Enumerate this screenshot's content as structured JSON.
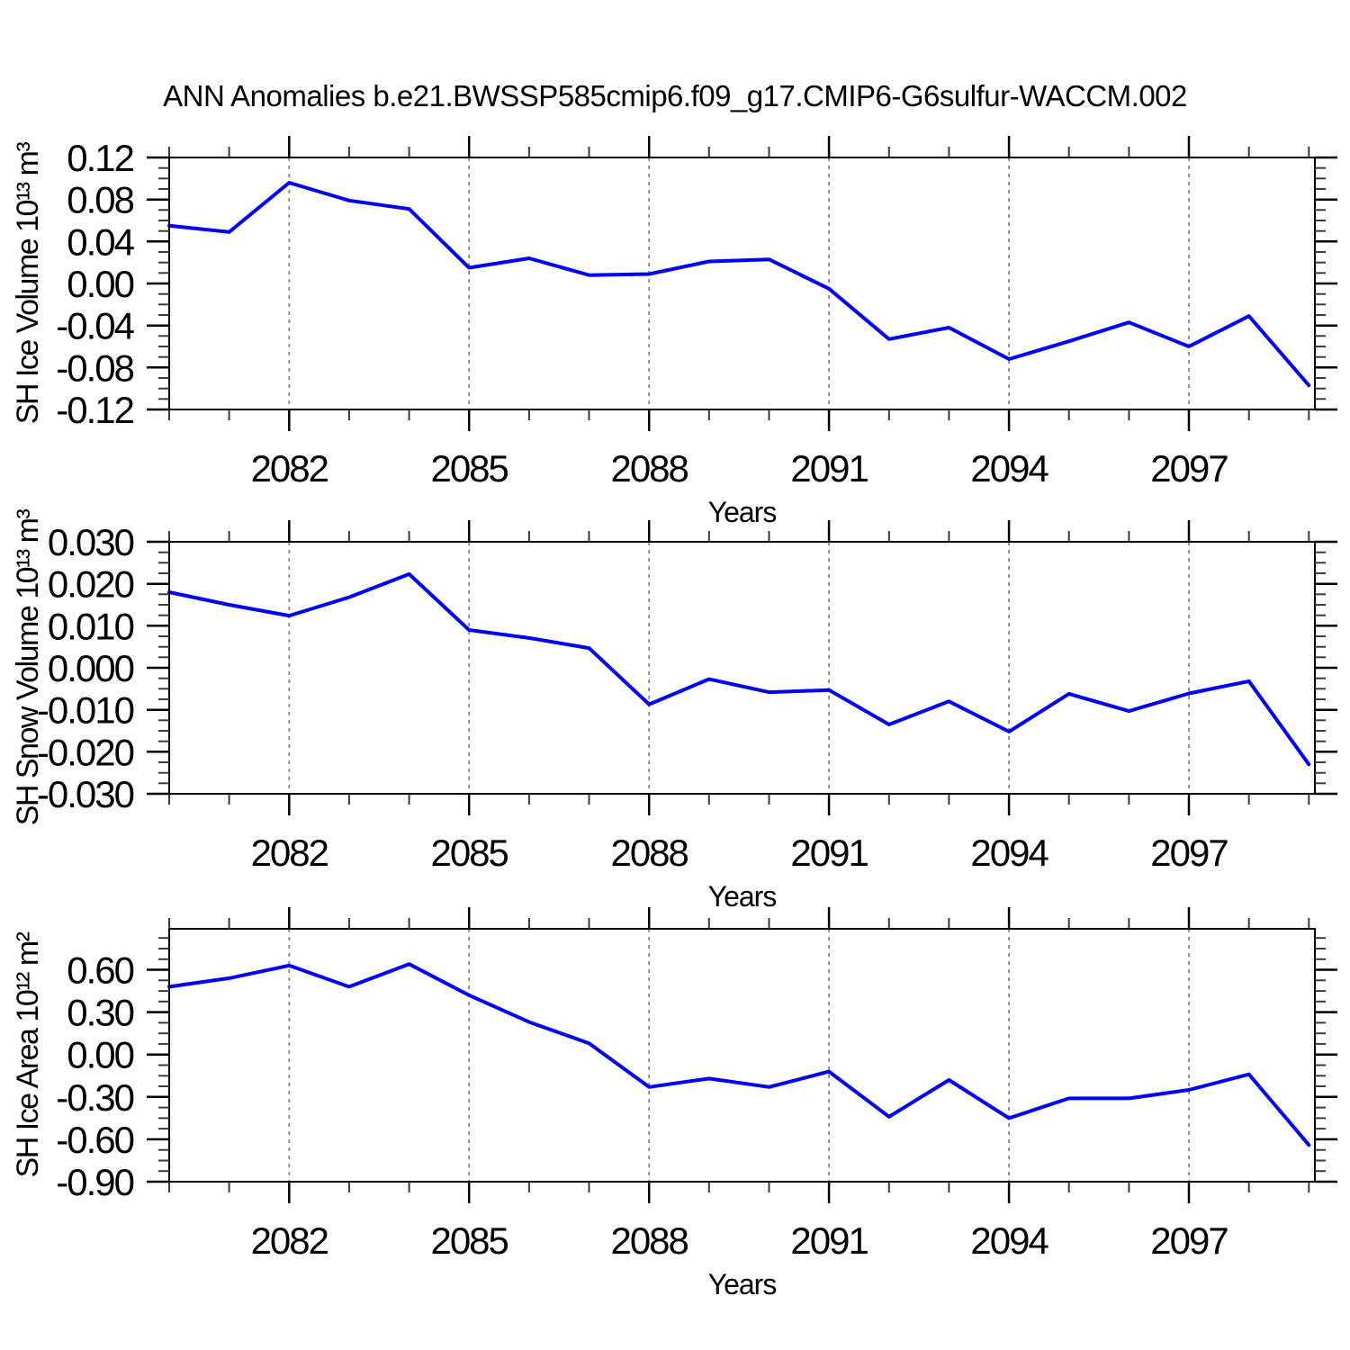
{
  "title": "ANN Anomalies b.e21.BWSSP585cmip6.f09_g17.CMIP6-G6sulfur-WACCM.002",
  "chart_data": [
    {
      "type": "line",
      "ylabel": "SH Ice Volume 10¹³ m³",
      "xlabel": "Years",
      "x": [
        2080,
        2081,
        2082,
        2083,
        2084,
        2085,
        2086,
        2087,
        2088,
        2089,
        2090,
        2091,
        2092,
        2093,
        2094,
        2095,
        2096,
        2097,
        2098,
        2099
      ],
      "values": [
        0.055,
        0.049,
        0.096,
        0.079,
        0.071,
        0.015,
        0.024,
        0.008,
        0.009,
        0.021,
        0.023,
        -0.005,
        -0.053,
        -0.042,
        -0.072,
        -0.055,
        -0.037,
        -0.06,
        -0.031,
        -0.097
      ],
      "xlim": [
        2080,
        2099.1
      ],
      "ylim": [
        -0.12,
        0.12
      ],
      "yticks": [
        0.12,
        0.08,
        0.04,
        0.0,
        -0.04,
        -0.08,
        -0.12
      ],
      "ytick_labels": [
        "0.12",
        "0.08",
        "0.04",
        "0.00",
        "-0.04",
        "-0.08",
        "-0.12"
      ],
      "ytick_minor_step": 0.01,
      "xticks": [
        2082,
        2085,
        2088,
        2091,
        2094,
        2097
      ],
      "xtick_labels": [
        "2082",
        "2085",
        "2088",
        "2091",
        "2094",
        "2097"
      ],
      "xtick_minor_step": 1,
      "grid": "vertical-dashed",
      "line_color": "#0000ff"
    },
    {
      "type": "line",
      "ylabel": "SH Snow Volume 10¹³ m³",
      "xlabel": "Years",
      "x": [
        2080,
        2081,
        2082,
        2083,
        2084,
        2085,
        2086,
        2087,
        2088,
        2089,
        2090,
        2091,
        2092,
        2093,
        2094,
        2095,
        2096,
        2097,
        2098,
        2099
      ],
      "values": [
        0.018,
        0.015,
        0.0124,
        0.0168,
        0.0223,
        0.009,
        0.0071,
        0.0047,
        -0.0087,
        -0.0027,
        -0.0058,
        -0.0053,
        -0.0135,
        -0.008,
        -0.0152,
        -0.0062,
        -0.0103,
        -0.0061,
        -0.0032,
        -0.023
      ],
      "xlim": [
        2080,
        2099.1
      ],
      "ylim": [
        -0.03,
        0.03
      ],
      "yticks": [
        0.03,
        0.02,
        0.01,
        0.0,
        -0.01,
        -0.02,
        -0.03
      ],
      "ytick_labels": [
        "0.030",
        "0.020",
        "0.010",
        "0.000",
        "-0.010",
        "-0.020",
        "-0.030"
      ],
      "ytick_minor_step": 0.0025,
      "xticks": [
        2082,
        2085,
        2088,
        2091,
        2094,
        2097
      ],
      "xtick_labels": [
        "2082",
        "2085",
        "2088",
        "2091",
        "2094",
        "2097"
      ],
      "xtick_minor_step": 1,
      "grid": "vertical-dashed",
      "line_color": "#0000ff"
    },
    {
      "type": "line",
      "ylabel": "SH Ice Area 10¹² m²",
      "xlabel": "Years",
      "x": [
        2080,
        2081,
        2082,
        2083,
        2084,
        2085,
        2086,
        2087,
        2088,
        2089,
        2090,
        2091,
        2092,
        2093,
        2094,
        2095,
        2096,
        2097,
        2098,
        2099
      ],
      "values": [
        0.48,
        0.54,
        0.63,
        0.48,
        0.64,
        0.42,
        0.23,
        0.08,
        -0.23,
        -0.17,
        -0.23,
        -0.12,
        -0.44,
        -0.18,
        -0.45,
        -0.31,
        -0.31,
        -0.25,
        -0.14,
        -0.64
      ],
      "xlim": [
        2080,
        2099.1
      ],
      "ylim": [
        -0.9,
        0.89
      ],
      "yticks": [
        0.6,
        0.3,
        0.0,
        -0.3,
        -0.6,
        -0.9
      ],
      "ytick_labels": [
        "0.60",
        "0.30",
        "0.00",
        "-0.30",
        "-0.60",
        "-0.90"
      ],
      "ytick_minor_step": 0.075,
      "xticks": [
        2082,
        2085,
        2088,
        2091,
        2094,
        2097
      ],
      "xtick_labels": [
        "2082",
        "2085",
        "2088",
        "2091",
        "2094",
        "2097"
      ],
      "xtick_minor_step": 1,
      "grid": "vertical-dashed",
      "line_color": "#0000ff"
    }
  ]
}
